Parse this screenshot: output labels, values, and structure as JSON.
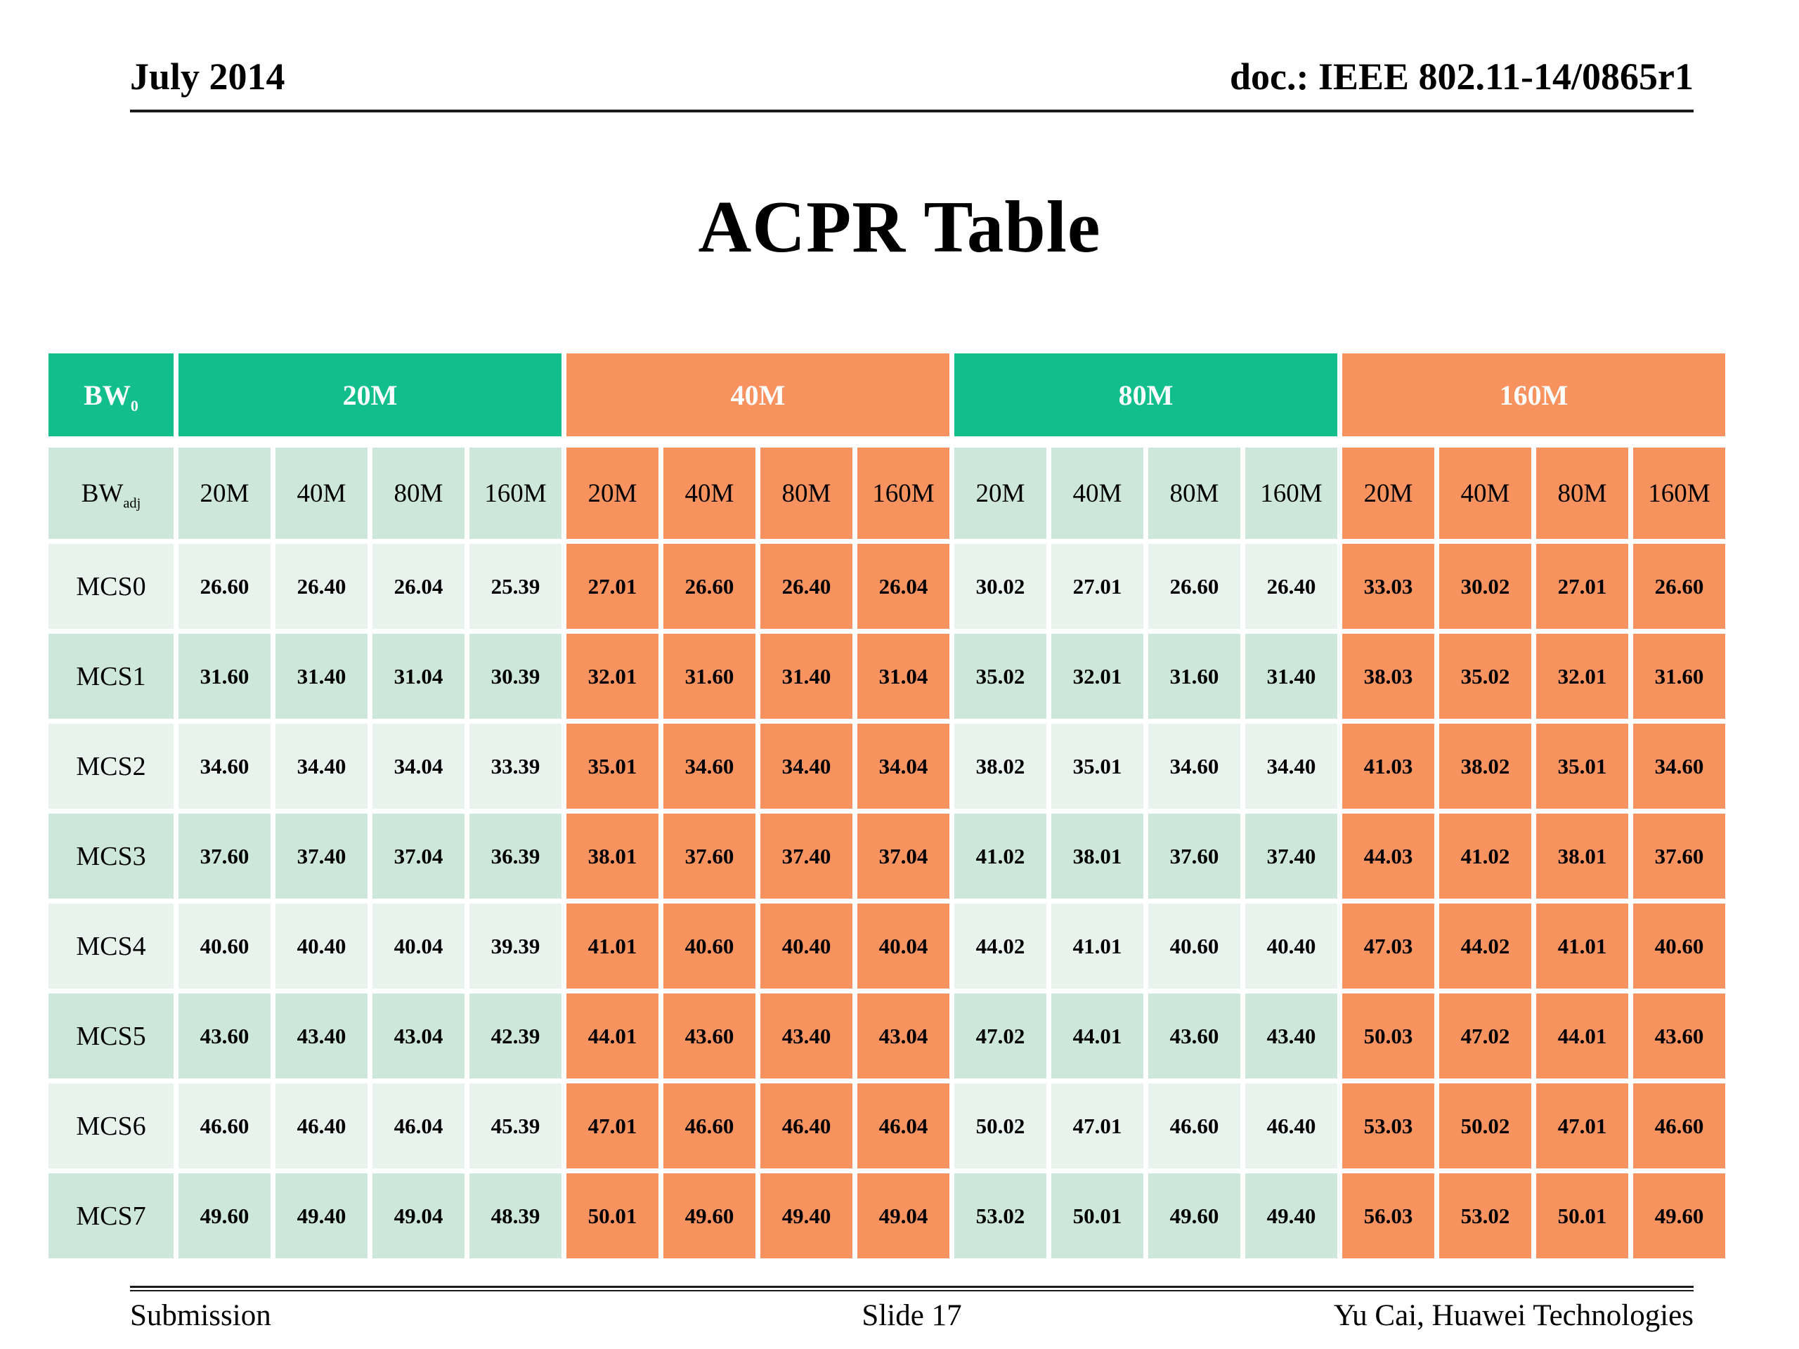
{
  "header": {
    "date": "July 2014",
    "doc": "doc.: IEEE 802.11-14/0865r1"
  },
  "title": "ACPR Table",
  "table": {
    "corner_label": {
      "base": "BW",
      "sub": "0"
    },
    "row_header_label": {
      "base": "BW",
      "sub": "adj"
    },
    "groups": [
      {
        "label": "20M",
        "color": "green"
      },
      {
        "label": "40M",
        "color": "orange"
      },
      {
        "label": "80M",
        "color": "green"
      },
      {
        "label": "160M",
        "color": "orange"
      }
    ],
    "subheaders": [
      "20M",
      "40M",
      "80M",
      "160M"
    ],
    "rows": [
      {
        "label": "MCS0",
        "values": [
          "26.60",
          "26.40",
          "26.04",
          "25.39",
          "27.01",
          "26.60",
          "26.40",
          "26.04",
          "30.02",
          "27.01",
          "26.60",
          "26.40",
          "33.03",
          "30.02",
          "27.01",
          "26.60"
        ]
      },
      {
        "label": "MCS1",
        "values": [
          "31.60",
          "31.40",
          "31.04",
          "30.39",
          "32.01",
          "31.60",
          "31.40",
          "31.04",
          "35.02",
          "32.01",
          "31.60",
          "31.40",
          "38.03",
          "35.02",
          "32.01",
          "31.60"
        ]
      },
      {
        "label": "MCS2",
        "values": [
          "34.60",
          "34.40",
          "34.04",
          "33.39",
          "35.01",
          "34.60",
          "34.40",
          "34.04",
          "38.02",
          "35.01",
          "34.60",
          "34.40",
          "41.03",
          "38.02",
          "35.01",
          "34.60"
        ]
      },
      {
        "label": "MCS3",
        "values": [
          "37.60",
          "37.40",
          "37.04",
          "36.39",
          "38.01",
          "37.60",
          "37.40",
          "37.04",
          "41.02",
          "38.01",
          "37.60",
          "37.40",
          "44.03",
          "41.02",
          "38.01",
          "37.60"
        ]
      },
      {
        "label": "MCS4",
        "values": [
          "40.60",
          "40.40",
          "40.04",
          "39.39",
          "41.01",
          "40.60",
          "40.40",
          "40.04",
          "44.02",
          "41.01",
          "40.60",
          "40.40",
          "47.03",
          "44.02",
          "41.01",
          "40.60"
        ]
      },
      {
        "label": "MCS5",
        "values": [
          "43.60",
          "43.40",
          "43.04",
          "42.39",
          "44.01",
          "43.60",
          "43.40",
          "43.04",
          "47.02",
          "44.01",
          "43.60",
          "43.40",
          "50.03",
          "47.02",
          "44.01",
          "43.60"
        ]
      },
      {
        "label": "MCS6",
        "values": [
          "46.60",
          "46.40",
          "46.04",
          "45.39",
          "47.01",
          "46.60",
          "46.40",
          "46.04",
          "50.02",
          "47.01",
          "46.60",
          "46.40",
          "53.03",
          "50.02",
          "47.01",
          "46.60"
        ]
      },
      {
        "label": "MCS7",
        "values": [
          "49.60",
          "49.40",
          "49.04",
          "48.39",
          "50.01",
          "49.60",
          "49.40",
          "49.04",
          "53.02",
          "50.01",
          "49.60",
          "49.40",
          "56.03",
          "53.02",
          "50.01",
          "49.60"
        ]
      }
    ],
    "colors": {
      "green": "#12BE8C",
      "orange": "#F8925F",
      "mint_light": "#E7F3EC",
      "mint_dark": "#CDE7DA",
      "group_text": "#FFFFFF",
      "cell_text": "#000000"
    }
  },
  "footer": {
    "left": "Submission",
    "center": "Slide 17",
    "right": "Yu Cai, Huawei Technologies"
  }
}
